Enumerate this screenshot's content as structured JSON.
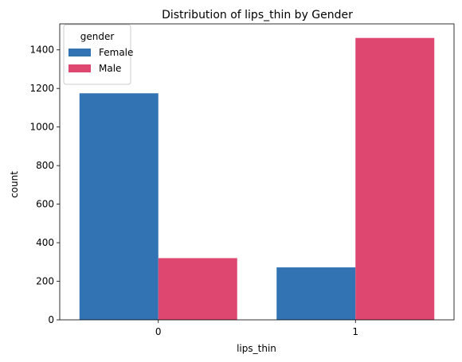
{
  "chart_data": {
    "type": "bar",
    "title": "Distribution of lips_thin by Gender",
    "xlabel": "lips_thin",
    "ylabel": "count",
    "categories": [
      "0",
      "1"
    ],
    "series": [
      {
        "name": "Female",
        "values": [
          1175,
          272
        ],
        "color": "#3274b3"
      },
      {
        "name": "Male",
        "values": [
          320,
          1462
        ],
        "color": "#de4770"
      }
    ],
    "ylim": [
      0,
      1535
    ],
    "yticks": [
      0,
      200,
      400,
      600,
      800,
      1000,
      1200,
      1400
    ],
    "legend": {
      "title": "gender",
      "placement": "top-left"
    },
    "grid": false
  }
}
